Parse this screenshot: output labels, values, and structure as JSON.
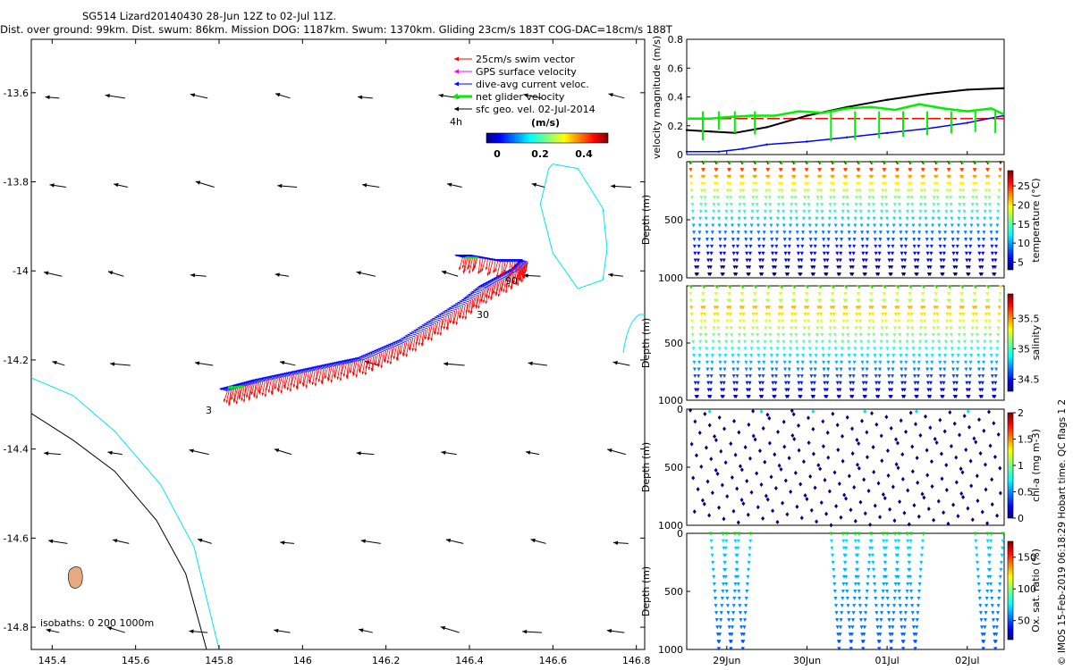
{
  "header": {
    "title_line1": "SG514 Lizard20140430 28-Jun 12Z to 02-Jul 11Z.",
    "title_line2": "Dist. over ground: 99km. Dist. swum: 86km. Mission DOG: 1187km. Swum: 1370km. Gliding 23cm/s 183T COG-DAC=18cm/s 188T"
  },
  "credit": "© IMOS 15-Feb-2019 06:18:29 Hobart time. QC flags 1  2",
  "colors": {
    "swim": "#ff0000",
    "gps": "#ff00ff",
    "dac": "#0000ff",
    "net": "#00ee00",
    "geo": "#000000",
    "iso0": "#000000",
    "iso200": "#00e5ee",
    "iso1000": "#000000",
    "land": "#e8a982"
  },
  "chart_data": [
    {
      "id": "map",
      "type": "scatter",
      "title": "",
      "xlim": [
        145.35,
        146.82
      ],
      "ylim": [
        -14.85,
        -13.48
      ],
      "xticks": [
        "145.4",
        "145.6",
        "145.8",
        "146",
        "146.2",
        "146.4",
        "146.6",
        "146.8"
      ],
      "xtick_values": [
        145.4,
        145.6,
        145.8,
        146.0,
        146.2,
        146.4,
        146.6,
        146.8
      ],
      "yticks": [
        "-13.6",
        "-13.8",
        "-14",
        "-14.2",
        "-14.4",
        "-14.6",
        "-14.8"
      ],
      "ytick_values": [
        -13.6,
        -13.8,
        -14.0,
        -14.2,
        -14.4,
        -14.6,
        -14.8
      ],
      "legend": {
        "position": "top-right",
        "entries": [
          "25cm/s swim vector",
          "GPS surface velocity",
          "dive-avg current veloc.",
          "net glider velocity",
          "sfc geo. vel. 02-Jul-2014"
        ],
        "scale_arrow_label": "4h"
      },
      "colorbar": {
        "label": "(m/s)",
        "ticks": [
          "0",
          "0.2",
          "0.4"
        ],
        "range": [
          0,
          0.5
        ]
      },
      "isobaths_label": "isobaths: 0   200  1000m",
      "track": {
        "lon": [
          145.82,
          145.86,
          145.9,
          145.95,
          146.0,
          146.05,
          146.1,
          146.15,
          146.2,
          146.25,
          146.3,
          146.35,
          146.4,
          146.44,
          146.48,
          146.52,
          146.54,
          146.48,
          146.42,
          146.38
        ],
        "lat": [
          -14.27,
          -14.26,
          -14.25,
          -14.24,
          -14.23,
          -14.22,
          -14.21,
          -14.2,
          -14.18,
          -14.16,
          -14.13,
          -14.1,
          -14.07,
          -14.04,
          -14.02,
          -14.0,
          -13.98,
          -13.98,
          -13.97,
          -13.97
        ]
      },
      "track_labels": [
        {
          "text": "3",
          "lon": 145.8,
          "lat": -14.28
        },
        {
          "text": "30",
          "lon": 146.42,
          "lat": -14.03
        },
        {
          "text": "90",
          "lon": 146.5,
          "lat": -13.985
        }
      ],
      "geo_vectors": {
        "lon": [
          145.4,
          145.55,
          145.75,
          145.95,
          146.15,
          146.35,
          146.55,
          146.75
        ],
        "lat": [
          -13.6,
          -13.8,
          -14.0,
          -14.2,
          -14.4,
          -14.6,
          -14.8
        ]
      },
      "isobaths": {
        "iso0_coast": {
          "lon": [
            145.35,
            145.45,
            145.55,
            145.65,
            145.72,
            145.77
          ],
          "lat": [
            -14.32,
            -14.38,
            -14.45,
            -14.56,
            -14.68,
            -14.85
          ]
        },
        "iso200": {
          "lon": [
            145.35,
            145.45,
            145.55,
            145.66,
            145.74,
            145.8
          ],
          "lat": [
            -14.24,
            -14.28,
            -14.36,
            -14.48,
            -14.62,
            -14.85
          ]
        },
        "reef_ring": {
          "lon": [
            146.6,
            146.66,
            146.72,
            146.73,
            146.72,
            146.66,
            146.6,
            146.57,
            146.59,
            146.6
          ],
          "lat": [
            -13.76,
            -13.77,
            -13.86,
            -13.95,
            -14.02,
            -14.04,
            -13.96,
            -13.85,
            -13.77,
            -13.76
          ]
        }
      }
    },
    {
      "id": "velocity",
      "type": "line",
      "ylabel": "velocity magnitude (m/s)",
      "ylim": [
        0,
        0.8
      ],
      "yticks": [
        "0",
        "0.2",
        "0.4",
        "0.6",
        "0.8"
      ],
      "xlim": [
        28.5,
        32.46
      ],
      "series": [
        {
          "name": "25cm/s swim vector",
          "color": "#ff0000",
          "x": [
            28.5,
            32.45
          ],
          "values": [
            0.25,
            0.25
          ]
        },
        {
          "name": "dive-avg current veloc.",
          "color": "#0000ff",
          "x": [
            28.5,
            28.9,
            29.2,
            29.5,
            30.0,
            30.5,
            31.0,
            31.5,
            32.0,
            32.45
          ],
          "values": [
            0.02,
            0.02,
            0.04,
            0.07,
            0.09,
            0.12,
            0.15,
            0.18,
            0.22,
            0.27
          ]
        },
        {
          "name": "sfc geo. vel.",
          "color": "#000000",
          "x": [
            28.5,
            28.8,
            29.1,
            29.5,
            30.0,
            30.5,
            31.0,
            31.5,
            32.0,
            32.45
          ],
          "values": [
            0.17,
            0.16,
            0.15,
            0.19,
            0.27,
            0.33,
            0.38,
            0.42,
            0.45,
            0.46
          ]
        },
        {
          "name": "net glider velocity",
          "color": "#00ee00",
          "x": [
            28.5,
            28.8,
            29.0,
            29.3,
            29.6,
            29.9,
            30.2,
            30.5,
            30.8,
            31.1,
            31.4,
            31.7,
            32.0,
            32.3,
            32.45
          ],
          "values": [
            0.25,
            0.25,
            0.26,
            0.27,
            0.27,
            0.3,
            0.29,
            0.32,
            0.33,
            0.31,
            0.35,
            0.32,
            0.3,
            0.32,
            0.28
          ]
        }
      ]
    },
    {
      "id": "temperature",
      "type": "scatter",
      "ylabel": "Depth (m)",
      "ylim": [
        1000,
        0
      ],
      "yticks": [
        "500",
        "1000"
      ],
      "colorbar": {
        "label": "temperature (°C)",
        "ticks": [
          "5",
          "10",
          "15",
          "20",
          "25"
        ],
        "range": [
          3,
          29
        ]
      },
      "dives": 24
    },
    {
      "id": "salinity",
      "type": "scatter",
      "ylabel": "Depth (m)",
      "ylim": [
        1000,
        0
      ],
      "yticks": [
        "500",
        "1000"
      ],
      "colorbar": {
        "label": "salinity",
        "ticks": [
          "34.5",
          "35",
          "35.5"
        ],
        "range": [
          34.3,
          35.9
        ]
      },
      "dives": 24
    },
    {
      "id": "chla",
      "type": "scatter",
      "ylabel": "Depth (m)",
      "ylim": [
        1000,
        0
      ],
      "yticks": [
        "0",
        "500",
        "1000"
      ],
      "colorbar": {
        "label": "chl-a (mg m-3)",
        "ticks": [
          "0",
          "0.5",
          "1",
          "1.5",
          "2"
        ],
        "range": [
          0,
          2
        ]
      },
      "dives": 24
    },
    {
      "id": "oxygen",
      "type": "scatter",
      "ylabel": "Depth (m)",
      "ylim": [
        1000,
        0
      ],
      "yticks": [
        "0",
        "500",
        "1000"
      ],
      "xticks": [
        "29Jun",
        "30Jun",
        "01Jul",
        "02Jul"
      ],
      "xtick_values": [
        29.0,
        30.0,
        31.0,
        32.0
      ],
      "xlim": [
        28.5,
        32.46
      ],
      "colorbar": {
        "label": "Ox. sat. ratio (%)",
        "ticks": [
          "50",
          "100",
          "150"
        ],
        "range": [
          20,
          175
        ]
      },
      "dive_starts": [
        28.8,
        28.95,
        29.1,
        30.3,
        30.45,
        30.6,
        30.8,
        30.95,
        31.1,
        31.25,
        32.1,
        32.25
      ]
    }
  ]
}
